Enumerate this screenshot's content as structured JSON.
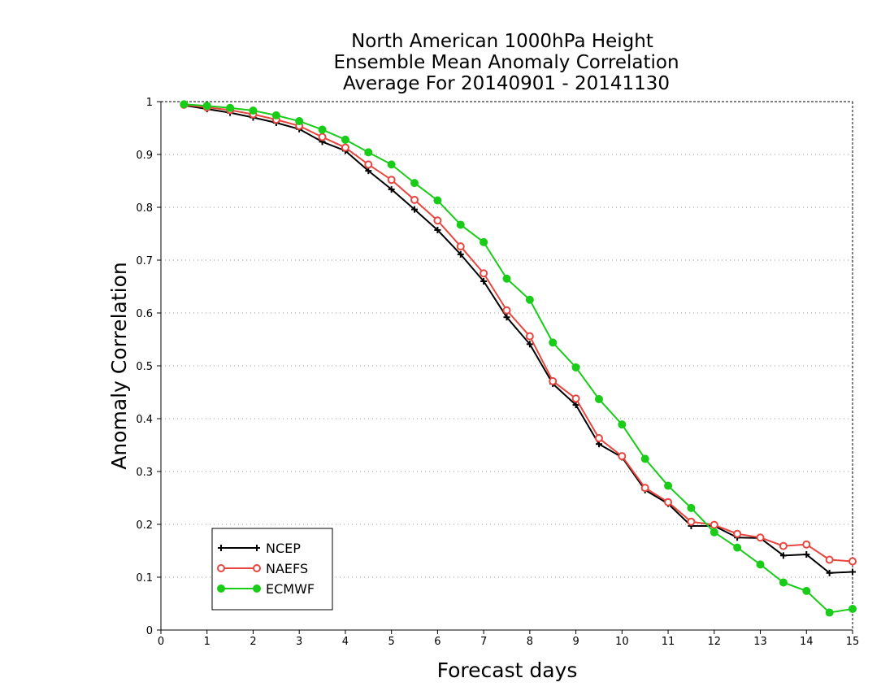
{
  "chart_data": {
    "type": "line",
    "title": [
      "North American 1000hPa Height",
      "Ensemble Mean Anomaly Correlation",
      "Average For 20140901 - 20141130"
    ],
    "xlabel": "Forecast days",
    "ylabel": "Anomaly Correlation",
    "xlim": [
      0,
      15
    ],
    "ylim": [
      0,
      1
    ],
    "x_ticks": [
      "0",
      "1",
      "2",
      "3",
      "4",
      "5",
      "6",
      "7",
      "8",
      "9",
      "10",
      "11",
      "12",
      "13",
      "14",
      "15"
    ],
    "y_ticks": [
      "0",
      "0.1",
      "0.2",
      "0.3",
      "0.4",
      "0.5",
      "0.6",
      "0.7",
      "0.8",
      "0.9",
      "1"
    ],
    "grid": "horizontal dotted",
    "legend_position": "bottom-left",
    "x": [
      0.5,
      1,
      1.5,
      2,
      2.5,
      3,
      3.5,
      4,
      4.5,
      5,
      5.5,
      6,
      6.5,
      7,
      7.5,
      8,
      8.5,
      9,
      9.5,
      10,
      10.5,
      11,
      11.5,
      12,
      12.5,
      13,
      13.5,
      14,
      14.5,
      15
    ],
    "series": [
      {
        "name": "NCEP",
        "color": "#000000",
        "marker": "plus",
        "values": [
          0.993,
          0.986,
          0.979,
          0.97,
          0.96,
          0.948,
          0.924,
          0.907,
          0.869,
          0.834,
          0.796,
          0.757,
          0.711,
          0.66,
          0.592,
          0.541,
          0.466,
          0.426,
          0.352,
          0.327,
          0.265,
          0.239,
          0.197,
          0.197,
          0.175,
          0.174,
          0.141,
          0.143,
          0.108,
          0.11
        ]
      },
      {
        "name": "NAEFS",
        "color": "#e8463f",
        "marker": "open-circle",
        "values": [
          0.994,
          0.989,
          0.984,
          0.976,
          0.966,
          0.954,
          0.933,
          0.913,
          0.881,
          0.852,
          0.814,
          0.775,
          0.726,
          0.675,
          0.605,
          0.556,
          0.471,
          0.438,
          0.363,
          0.329,
          0.269,
          0.242,
          0.205,
          0.199,
          0.182,
          0.175,
          0.159,
          0.162,
          0.133,
          0.13
        ]
      },
      {
        "name": "ECMWF",
        "color": "#18cc18",
        "marker": "filled-circle",
        "values": [
          0.995,
          0.992,
          0.988,
          0.983,
          0.974,
          0.963,
          0.947,
          0.928,
          0.904,
          0.881,
          0.846,
          0.813,
          0.767,
          0.734,
          0.665,
          0.625,
          0.544,
          0.497,
          0.437,
          0.389,
          0.324,
          0.273,
          0.231,
          0.185,
          0.156,
          0.124,
          0.09,
          0.074,
          0.033,
          0.04
        ]
      }
    ]
  }
}
